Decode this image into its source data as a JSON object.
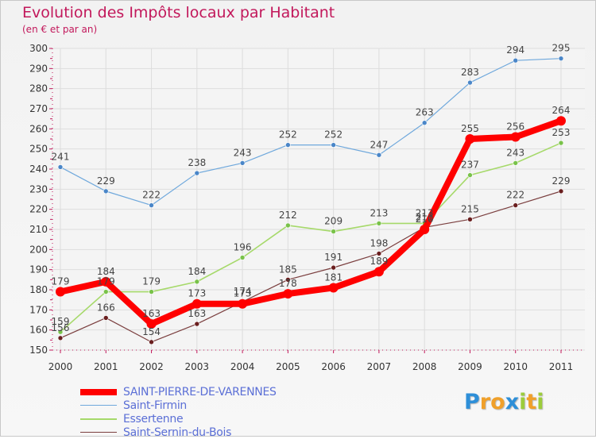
{
  "title": "Evolution des Impôts locaux par Habitant",
  "subtitle": "(en € et par an)",
  "logo": {
    "chars": [
      {
        "c": "P",
        "color": "#2e8fd8"
      },
      {
        "c": "r",
        "color": "#f0a02a"
      },
      {
        "c": "o",
        "color": "#f0a02a"
      },
      {
        "c": "x",
        "color": "#2e8fd8"
      },
      {
        "c": "i",
        "color": "#9ccc3c"
      },
      {
        "c": "t",
        "color": "#f0a02a"
      },
      {
        "c": "i",
        "color": "#9ccc3c"
      }
    ]
  },
  "chart_data": {
    "type": "line",
    "title": "Evolution des Impôts locaux par Habitant",
    "subtitle": "(en € et par an)",
    "x": [
      "2000",
      "2001",
      "2002",
      "2003",
      "2004",
      "2005",
      "2006",
      "2007",
      "2008",
      "2009",
      "2010",
      "2011"
    ],
    "ylim": [
      150,
      300
    ],
    "yticks": [
      150,
      160,
      170,
      180,
      190,
      200,
      210,
      220,
      230,
      240,
      250,
      260,
      270,
      280,
      290,
      300
    ],
    "grid": true,
    "legend_position": "bottom-left",
    "series": [
      {
        "name": "SAINT-PIERRE-DE-VARENNES",
        "color": "#ff0000",
        "values": [
          179,
          184,
          163,
          173,
          173,
          178,
          181,
          189,
          210,
          255,
          256,
          264
        ]
      },
      {
        "name": "Saint-Firmin",
        "color": "#6fa8dc",
        "values": [
          241,
          229,
          222,
          238,
          243,
          252,
          252,
          247,
          263,
          283,
          294,
          295
        ]
      },
      {
        "name": "Essertenne",
        "color": "#a6d96a",
        "values": [
          159,
          179,
          179,
          184,
          196,
          212,
          209,
          213,
          213,
          237,
          243,
          253
        ]
      },
      {
        "name": "Saint-Sernin-du-Bois",
        "color": "#7b3f3f",
        "values": [
          156,
          166,
          154,
          163,
          174,
          185,
          191,
          198,
          211,
          215,
          222,
          229
        ]
      }
    ]
  }
}
